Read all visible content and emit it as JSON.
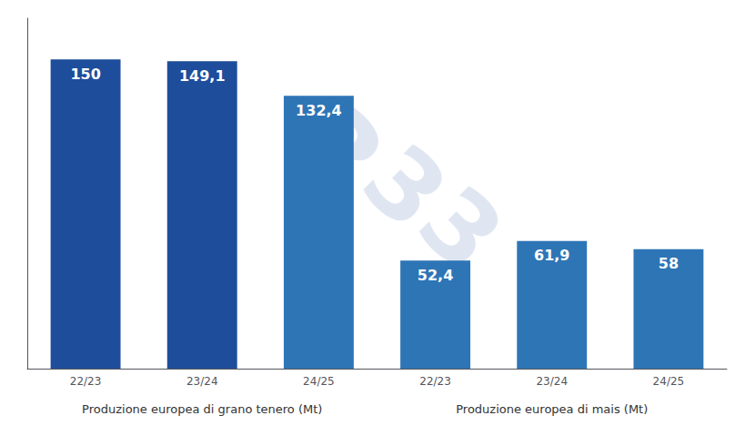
{
  "chart_data": {
    "type": "bar",
    "categories": [
      "22/23",
      "23/24",
      "24/25",
      "22/23",
      "23/24",
      "24/25"
    ],
    "values": [
      150,
      149.1,
      132.4,
      52.4,
      61.9,
      58.0
    ],
    "value_labels": [
      "150",
      "149,1",
      "132,4",
      "52,4",
      "61,9",
      "58"
    ],
    "colors": [
      "#1e4d9b",
      "#1e4d9b",
      "#2e75b6",
      "#2e75b6",
      "#2e75b6",
      "#2e75b6"
    ],
    "xlabel": [
      "Produzione europea di grano tenero (Mt)",
      "Produzione europea di mais (Mt)"
    ],
    "annotations": [
      {
        "text": "3",
        "color": "#ccd6e8"
      },
      {
        "text": "3",
        "color": "#ccd6e8"
      },
      {
        "text": "3",
        "color": "#ccd6e8"
      }
    ],
    "ylim": [
      0,
      170
    ],
    "grid": false,
    "data_labels": true,
    "tick_labels": "x"
  }
}
